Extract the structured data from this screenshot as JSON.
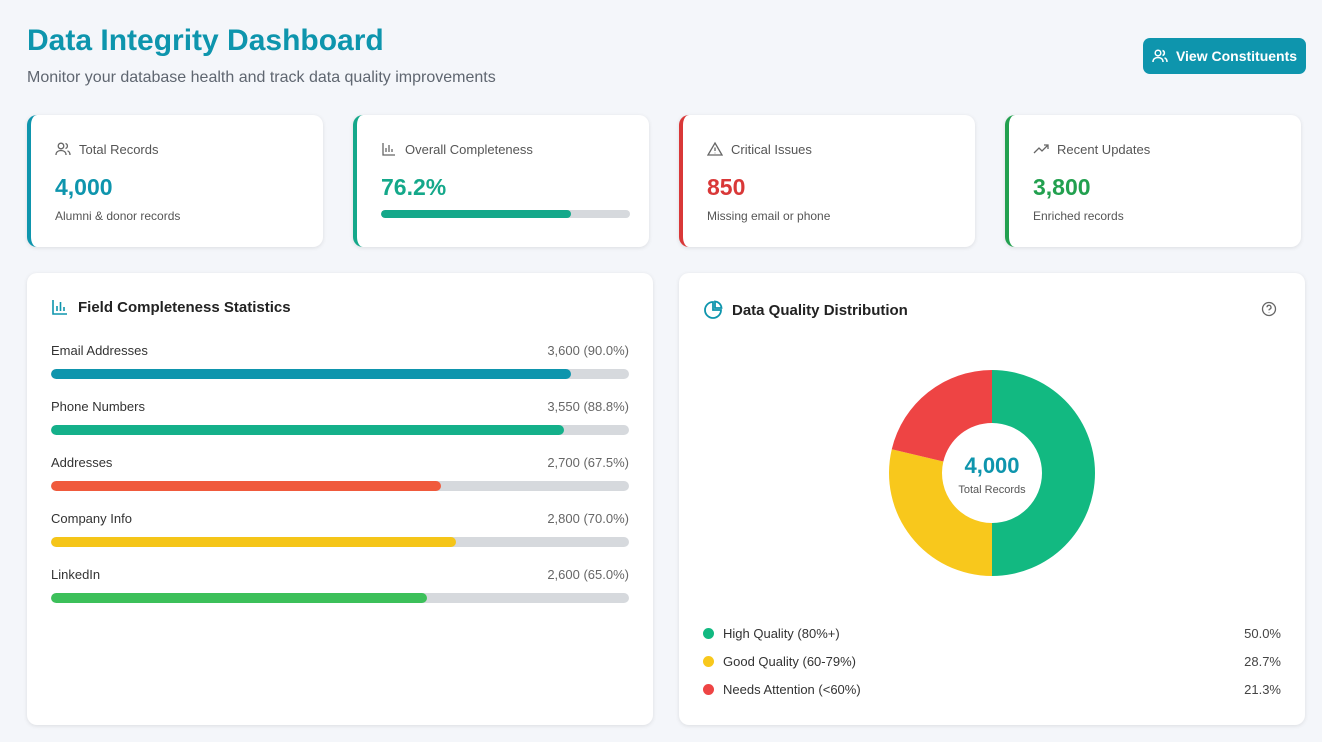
{
  "header": {
    "title": "Data Integrity Dashboard",
    "subtitle": "Monitor your database health and track data quality improvements",
    "button": "View Constituents"
  },
  "cards": [
    {
      "label": "Total Records",
      "value": "4,000",
      "note": "Alumni & donor records",
      "color": "#0e95ad"
    },
    {
      "label": "Overall Completeness",
      "value": 76.2,
      "value_label": "76.2%",
      "color": "#14a88a"
    },
    {
      "label": "Critical Issues",
      "value": "850",
      "note": "Missing email or phone",
      "color": "#d93838"
    },
    {
      "label": "Recent Updates",
      "value": "3,800",
      "note": "Enriched records",
      "color": "#22a04f"
    }
  ],
  "field_stats": {
    "title": "Field Completeness Statistics",
    "rows": [
      {
        "label": "Email Addresses",
        "count_label": "3,600 (90.0%)",
        "percent": 90.0,
        "color": "#0e95ad"
      },
      {
        "label": "Phone Numbers",
        "count_label": "3,550 (88.8%)",
        "percent": 88.8,
        "color": "#14b08a"
      },
      {
        "label": "Addresses",
        "count_label": "2,700 (67.5%)",
        "percent": 67.5,
        "color": "#f05a3c"
      },
      {
        "label": "Company Info",
        "count_label": "2,800 (70.0%)",
        "percent": 70.0,
        "color": "#f5c518"
      },
      {
        "label": "LinkedIn",
        "count_label": "2,600 (65.0%)",
        "percent": 65.0,
        "color": "#3cc05a"
      }
    ]
  },
  "distribution": {
    "title": "Data Quality Distribution",
    "center_value": "4,000",
    "center_label": "Total Records",
    "segments": [
      {
        "name": "High Quality (80%+)",
        "value": 50.0,
        "value_label": "50.0%",
        "color": "#12b981"
      },
      {
        "name": "Good Quality (60-79%)",
        "value": 28.7,
        "value_label": "28.7%",
        "color": "#f8c81c"
      },
      {
        "name": "Needs Attention (<60%)",
        "value": 21.3,
        "value_label": "21.3%",
        "color": "#ee4444"
      }
    ]
  }
}
